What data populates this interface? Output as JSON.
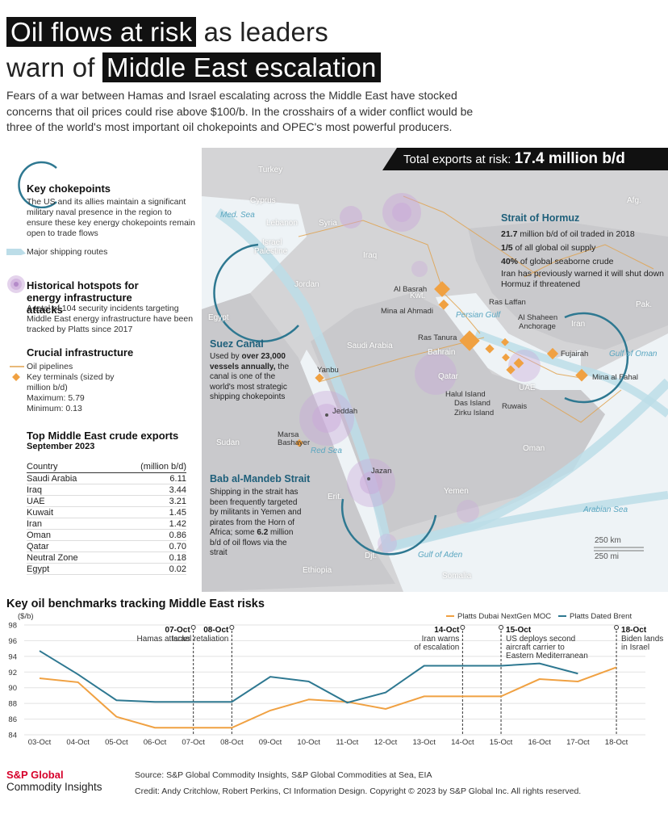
{
  "title": {
    "highlight1": "Oil flows at risk",
    "part2": " as leaders",
    "part3": "warn of ",
    "highlight2": "Middle East escalation"
  },
  "subtitle": "Fears of a war between Hamas and Israel escalating across the Middle East have stocked concerns that oil prices could rise above $100/b. In the crosshairs of a wider conflict would be three of the world's most important oil chokepoints and OPEC's most powerful producers.",
  "legend": {
    "chokepoints_title": "Key chokepoints",
    "chokepoints_text": "The US and its allies maintain a significant military naval presence in the region to ensure these key energy chokepoints remain open to trade flows",
    "shipping": "Major shipping routes",
    "hotspots_title": "Historical hotspots for energy infrastructure attacks",
    "hotspots_text": "A total of 104 security incidents targeting Middle East energy infrastructure have been tracked by Platts since 2017",
    "infra_title": "Crucial infrastructure",
    "pipelines": "Oil pipelines",
    "terminals": "Key terminals (sized by million b/d)",
    "maximum": "Maximum: 5.79",
    "minimum": "Minimum: 0.13"
  },
  "exports_table": {
    "title": "Top Middle East crude exports",
    "subtitle": "September 2023",
    "col1": "Country",
    "col2": "(million b/d)",
    "rows": [
      {
        "country": "Saudi Arabia",
        "value": "6.11"
      },
      {
        "country": "Iraq",
        "value": "3.44"
      },
      {
        "country": "UAE",
        "value": "3.21"
      },
      {
        "country": "Kuwait",
        "value": "1.45"
      },
      {
        "country": "Iran",
        "value": "1.42"
      },
      {
        "country": "Oman",
        "value": "0.86"
      },
      {
        "country": "Qatar",
        "value": "0.70"
      },
      {
        "country": "Neutral Zone",
        "value": "0.18"
      },
      {
        "country": "Egypt",
        "value": "0.02"
      }
    ]
  },
  "map": {
    "total_label": "Total exports at risk: ",
    "total_value": "17.4 million b/d",
    "countries": [
      "Turkey",
      "Cyprus",
      "Lebanon",
      "Syria",
      "Israel",
      "Palestine",
      "Jordan",
      "Iraq",
      "Egypt",
      "Kwt.",
      "Saudi Arabia",
      "Bahrain",
      "Qatar",
      "UAE",
      "Iran",
      "Afg.",
      "Pak.",
      "Oman",
      "Sudan",
      "Erit.",
      "Yemen",
      "Djt.",
      "Ethiopia",
      "Somalia"
    ],
    "seas": [
      "Med. Sea",
      "Persian Gulf",
      "Red Sea",
      "Gulf of Oman",
      "Arabian Sea",
      "Gulf of Aden"
    ],
    "terminals": [
      "Al Basrah",
      "Mina al Ahmadi",
      "Ras Laffan",
      "Al Shaheen",
      "Anchorage",
      "Ras Tanura",
      "Fujairah",
      "Mina al Fahal",
      "Yanbu",
      "Jeddah",
      "Marsa",
      "Bashayer",
      "Jazan",
      "Halul Island",
      "Das Island",
      "Zirku Island",
      "Ruwais"
    ],
    "hormuz": {
      "title": "Strait of Hormuz",
      "l1_bold": "21.7",
      "l1": " million b/d of oil traded in 2018",
      "l2_bold": "1/5",
      "l2": " of all global oil supply",
      "l3_bold": "40%",
      "l3": " of global seaborne crude",
      "l4": "Iran has previously warned it will shut down Hormuz if threatened"
    },
    "suez": {
      "title": "Suez Canal",
      "t1": "Used by ",
      "t1_bold": "over 23,000 vessels annually,",
      "t2": " the canal is one of the world's most strategic shipping chokepoints"
    },
    "bab": {
      "title": "Bab al-Mandeb Strait",
      "t1": "Shipping in the strait has been frequently targeted by militants in Yemen and pirates from the Horn of Africa; some ",
      "t1_bold": "6.2",
      "t2": " million b/d of oil flows via the strait"
    },
    "scale_km": "250 km",
    "scale_mi": "250 mi"
  },
  "benchmarks_title": "Key oil benchmarks tracking  Middle East risks",
  "chart_data": {
    "type": "line",
    "title": "Key oil benchmarks tracking  Middle East risks",
    "ylabel": "($/b)",
    "ylim": [
      84,
      98
    ],
    "yticks": [
      84,
      86,
      88,
      90,
      92,
      94,
      96,
      98
    ],
    "categories": [
      "03-Oct",
      "04-Oct",
      "05-Oct",
      "06-Oct",
      "07-Oct",
      "08-Oct",
      "09-Oct",
      "10-Oct",
      "11-Oct",
      "12-Oct",
      "13-Oct",
      "14-Oct",
      "15-Oct",
      "16-Oct",
      "17-Oct",
      "18-Oct"
    ],
    "series": [
      {
        "name": "Platts Dubai NextGen MOC",
        "color": "#f0a142",
        "values": [
          91.2,
          90.7,
          86.3,
          84.9,
          84.9,
          84.9,
          87.1,
          88.5,
          88.2,
          87.3,
          88.9,
          88.9,
          88.9,
          91.1,
          90.8,
          92.6
        ]
      },
      {
        "name": "Platts Dated Brent",
        "color": "#2e7891",
        "values": [
          94.7,
          91.7,
          88.4,
          88.2,
          88.2,
          88.2,
          91.4,
          90.8,
          88.1,
          89.4,
          92.8,
          92.8,
          92.8,
          93.1,
          91.8,
          null
        ]
      }
    ],
    "events": [
      {
        "date": "07-Oct",
        "title": "07-Oct",
        "text": [
          "Hamas attacks"
        ]
      },
      {
        "date": "08-Oct",
        "title": "08-Oct",
        "text": [
          "Israel retaliation"
        ]
      },
      {
        "date": "14-Oct",
        "title": "14-Oct",
        "text": [
          "Iran warns",
          "of escalation"
        ]
      },
      {
        "date": "15-Oct",
        "title": "15-Oct",
        "text": [
          "US deploys second",
          "aircraft carrier to",
          "Eastern Mediterranean"
        ]
      },
      {
        "date": "18-Oct",
        "title": "18-Oct",
        "text": [
          "Biden lands",
          "in Israel"
        ]
      }
    ],
    "legend_position": "top-right",
    "grid": true
  },
  "footer": {
    "logo1": "S&P Global",
    "logo2": "Commodity Insights",
    "source": "Source: S&P Global Commodity Insights, S&P Global Commodities at Sea, EIA",
    "credit": "Credit: Andy Critchlow, Robert Perkins, CI Information Design.  Copyright © 2023 by S&P Global Inc. All rights reserved."
  },
  "colors": {
    "accent": "#f0a142",
    "teal": "#2e7891",
    "hotspot": "#c9a7d9",
    "route": "#bcdde8",
    "dark": "#111111"
  }
}
